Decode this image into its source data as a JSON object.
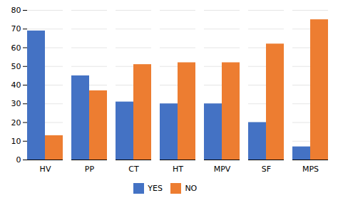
{
  "chart_data": {
    "type": "bar",
    "categories": [
      "HV",
      "PP",
      "CT",
      "HT",
      "MPV",
      "SF",
      "MPS"
    ],
    "series": [
      {
        "name": "YES",
        "color": "#4472C4",
        "values": [
          69,
          45,
          31,
          30,
          30,
          20,
          7
        ]
      },
      {
        "name": "NO",
        "color": "#ED7D31",
        "values": [
          13,
          37,
          51,
          52,
          52,
          62,
          75
        ]
      }
    ],
    "ylim": [
      0,
      80
    ],
    "yticks": [
      0,
      10,
      20,
      30,
      40,
      50,
      60,
      70,
      80
    ],
    "grid": true,
    "legend": "bottom"
  }
}
